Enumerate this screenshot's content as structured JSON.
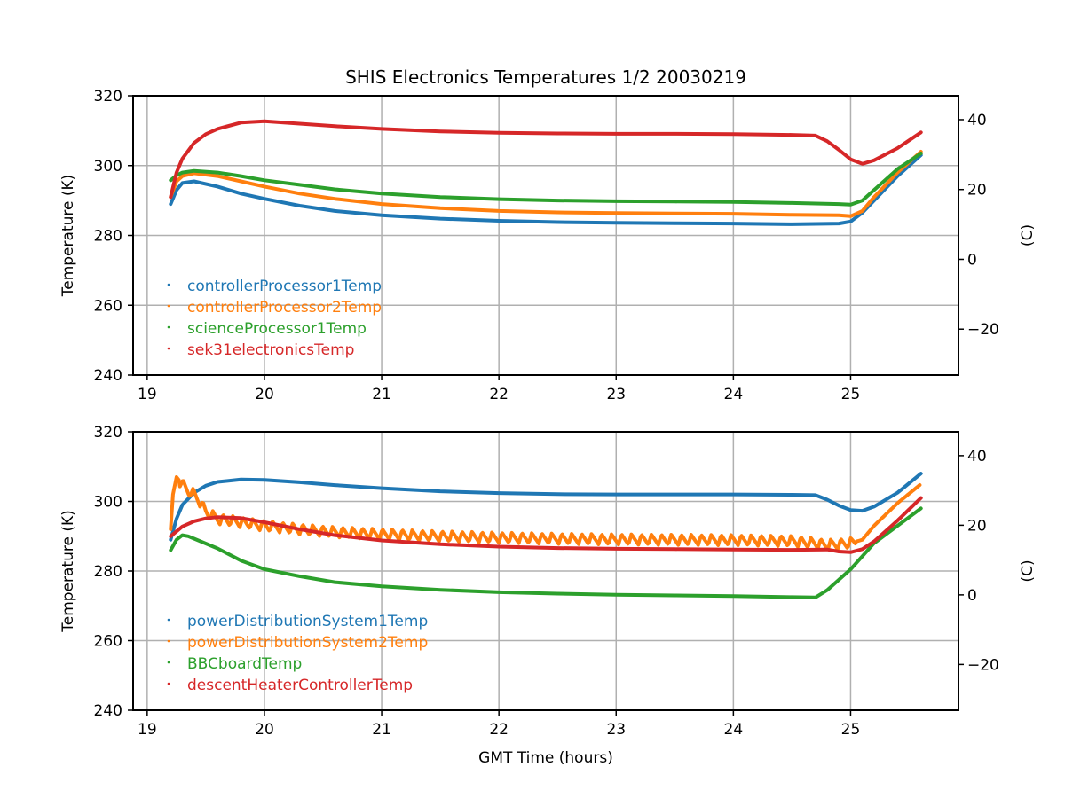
{
  "chart_data": [
    {
      "type": "line",
      "title": "SHIS Electronics Temperatures 1/2 20030219",
      "xlabel": "",
      "ylabel": "Temperature (K)",
      "y2label": "(C)",
      "xlim": [
        18.88,
        25.92
      ],
      "ylim": [
        240,
        320
      ],
      "y2lim": [
        -33.15,
        46.85
      ],
      "xticks": [
        "19",
        "20",
        "21",
        "22",
        "23",
        "24",
        "25"
      ],
      "xtick_values": [
        19,
        20,
        21,
        22,
        23,
        24,
        25
      ],
      "yticks": [
        "240",
        "260",
        "280",
        "300",
        "320"
      ],
      "ytick_values": [
        240,
        260,
        280,
        300,
        320
      ],
      "y2ticks": [
        "−20",
        "0",
        "20",
        "40"
      ],
      "y2tick_values": [
        -20,
        0,
        20,
        40
      ],
      "grid": true,
      "legend_position": "center-left",
      "series": [
        {
          "name": "controllerProcessor1Temp",
          "color": "#1f77b4",
          "x": [
            19.2,
            19.25,
            19.3,
            19.4,
            19.6,
            19.8,
            20.0,
            20.3,
            20.6,
            21.0,
            21.5,
            22.0,
            22.5,
            23.0,
            23.5,
            24.0,
            24.5,
            24.9,
            25.0,
            25.1,
            25.2,
            25.4,
            25.6
          ],
          "y": [
            289,
            293,
            295,
            295.5,
            294,
            292,
            290.5,
            288.5,
            287,
            285.8,
            284.8,
            284.2,
            283.8,
            283.6,
            283.5,
            283.4,
            283.2,
            283.4,
            284,
            286.5,
            290,
            297,
            303
          ]
        },
        {
          "name": "controllerProcessor2Temp",
          "color": "#ff7f0e",
          "x": [
            19.2,
            19.25,
            19.3,
            19.4,
            19.6,
            19.8,
            20.0,
            20.3,
            20.6,
            21.0,
            21.5,
            22.0,
            22.5,
            23.0,
            23.5,
            24.0,
            24.5,
            24.9,
            25.0,
            25.1,
            25.2,
            25.4,
            25.6
          ],
          "y": [
            291,
            295.5,
            297,
            297.8,
            297,
            295.5,
            294,
            292,
            290.5,
            289,
            287.8,
            287,
            286.6,
            286.4,
            286.3,
            286.2,
            285.9,
            285.8,
            285.5,
            287,
            291,
            298,
            304
          ]
        },
        {
          "name": "scienceProcessor1Temp",
          "color": "#2ca02c",
          "x": [
            19.2,
            19.25,
            19.3,
            19.4,
            19.6,
            19.8,
            20.0,
            20.3,
            20.6,
            21.0,
            21.5,
            22.0,
            22.5,
            23.0,
            23.5,
            24.0,
            24.5,
            24.9,
            25.0,
            25.1,
            25.2,
            25.4,
            25.6
          ],
          "y": [
            295.8,
            297.2,
            298,
            298.5,
            298,
            297,
            295.8,
            294.5,
            293.2,
            292,
            291,
            290.4,
            290,
            289.8,
            289.7,
            289.6,
            289.3,
            289,
            288.8,
            290,
            293,
            299,
            303.5
          ]
        },
        {
          "name": "sek31electronicsTemp",
          "color": "#d62728",
          "x": [
            19.2,
            19.25,
            19.3,
            19.4,
            19.5,
            19.6,
            19.8,
            20.0,
            20.3,
            20.6,
            21.0,
            21.5,
            22.0,
            22.5,
            23.0,
            23.5,
            24.0,
            24.5,
            24.7,
            24.8,
            24.9,
            25.0,
            25.1,
            25.2,
            25.4,
            25.6
          ],
          "y": [
            291,
            298,
            302,
            306.5,
            309,
            310.5,
            312.3,
            312.7,
            312,
            311.3,
            310.5,
            309.8,
            309.4,
            309.2,
            309.1,
            309.1,
            309,
            308.8,
            308.6,
            307,
            304.5,
            301.8,
            300.5,
            301.5,
            305,
            309.5
          ]
        }
      ]
    },
    {
      "type": "line",
      "title": "",
      "xlabel": "GMT Time (hours)",
      "ylabel": "Temperature (K)",
      "y2label": "(C)",
      "xlim": [
        18.88,
        25.92
      ],
      "ylim": [
        240,
        320
      ],
      "y2lim": [
        -33.15,
        46.85
      ],
      "xticks": [
        "19",
        "20",
        "21",
        "22",
        "23",
        "24",
        "25"
      ],
      "xtick_values": [
        19,
        20,
        21,
        22,
        23,
        24,
        25
      ],
      "yticks": [
        "240",
        "260",
        "280",
        "300",
        "320"
      ],
      "ytick_values": [
        240,
        260,
        280,
        300,
        320
      ],
      "y2ticks": [
        "−20",
        "0",
        "20",
        "40"
      ],
      "y2tick_values": [
        -20,
        0,
        20,
        40
      ],
      "grid": true,
      "legend_position": "lower-left",
      "series": [
        {
          "name": "powerDistributionSystem1Temp",
          "color": "#1f77b4",
          "x": [
            19.2,
            19.25,
            19.3,
            19.4,
            19.5,
            19.6,
            19.8,
            20.0,
            20.3,
            20.6,
            21.0,
            21.5,
            22.0,
            22.5,
            23.0,
            23.5,
            24.0,
            24.5,
            24.7,
            24.8,
            24.9,
            25.0,
            25.1,
            25.2,
            25.4,
            25.6
          ],
          "y": [
            289,
            295,
            299,
            302.5,
            304.5,
            305.6,
            306.3,
            306.2,
            305.5,
            304.7,
            303.8,
            302.9,
            302.4,
            302.1,
            302,
            302,
            302,
            301.9,
            301.8,
            300.5,
            298.8,
            297.5,
            297.3,
            298.5,
            302.5,
            308
          ]
        },
        {
          "name": "powerDistributionSystem2Temp",
          "color": "#ff7f0e",
          "oscillating": true,
          "x": [
            19.2,
            19.22,
            19.25,
            19.3,
            19.35,
            19.4,
            19.45,
            19.5,
            19.6,
            19.8,
            20.0,
            20.3,
            20.6,
            21.0,
            21.5,
            22.0,
            22.5,
            23.0,
            23.5,
            24.0,
            24.5,
            24.7,
            24.8,
            25.0,
            25.1,
            25.2,
            25.4,
            25.6
          ],
          "y": [
            292,
            302,
            307,
            305,
            303,
            302,
            300,
            297,
            295,
            294,
            293,
            292,
            291.2,
            290.6,
            290,
            289.6,
            289.3,
            289.1,
            289,
            288.9,
            288.6,
            288,
            287.5,
            288,
            289,
            293,
            299.5,
            305
          ]
        },
        {
          "name": "BBCboardTemp",
          "color": "#2ca02c",
          "x": [
            19.2,
            19.25,
            19.3,
            19.35,
            19.4,
            19.6,
            19.8,
            20.0,
            20.3,
            20.6,
            21.0,
            21.5,
            22.0,
            22.5,
            23.0,
            23.5,
            24.0,
            24.5,
            24.7,
            24.8,
            25.0,
            25.2,
            25.4,
            25.6
          ],
          "y": [
            286,
            289,
            290.3,
            290,
            289.3,
            286.5,
            283,
            280.5,
            278.5,
            276.8,
            275.6,
            274.6,
            273.9,
            273.5,
            273.2,
            273,
            272.8,
            272.5,
            272.4,
            274.5,
            280.5,
            288,
            293,
            298
          ]
        },
        {
          "name": "descentHeaterControllerTemp",
          "color": "#d62728",
          "x": [
            19.2,
            19.3,
            19.4,
            19.5,
            19.6,
            19.8,
            20.0,
            20.3,
            20.6,
            21.0,
            21.5,
            22.0,
            22.5,
            23.0,
            23.5,
            24.0,
            24.5,
            24.8,
            24.9,
            25.0,
            25.1,
            25.2,
            25.4,
            25.6
          ],
          "y": [
            290,
            292.8,
            294.3,
            295.1,
            295.5,
            295.2,
            294,
            292,
            290.3,
            288.8,
            287.7,
            287,
            286.6,
            286.4,
            286.3,
            286.2,
            286.1,
            286.2,
            285.6,
            285.4,
            286.3,
            288.5,
            294.5,
            301
          ]
        }
      ]
    }
  ]
}
